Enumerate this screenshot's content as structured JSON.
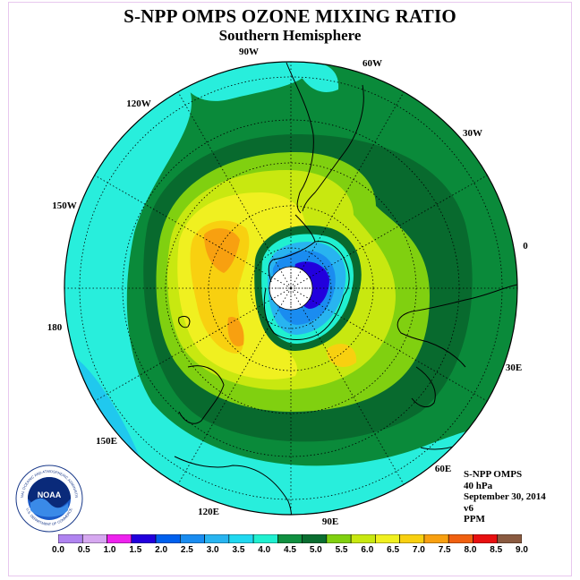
{
  "title": "S-NPP OMPS OZONE MIXING RATIO",
  "subtitle": "Southern Hemisphere",
  "longitude_labels": {
    "lon_90w": "90W",
    "lon_60w": "60W",
    "lon_30w": "30W",
    "lon_0": "0",
    "lon_30e": "30E",
    "lon_60e": "60E",
    "lon_90e": "90E",
    "lon_120e": "120E",
    "lon_150e": "150E",
    "lon_180": "180",
    "lon_150w": "150W",
    "lon_120w": "120W"
  },
  "info": {
    "instrument": "S-NPP OMPS",
    "level": "40 hPa",
    "date": "September 30, 2014",
    "version": "v6",
    "units": "PPM"
  },
  "logo": {
    "text": "NOAA",
    "ring_text": "NATIONAL OCEANIC AND ATMOSPHERIC ADMINISTRATION",
    "ring_text_bottom": "U.S. DEPARTMENT OF COMMERCE"
  },
  "colorbar": {
    "labels": [
      "0.0",
      "0.5",
      "1.0",
      "1.5",
      "2.0",
      "2.5",
      "3.0",
      "3.5",
      "4.0",
      "4.5",
      "5.0",
      "5.5",
      "6.0",
      "6.5",
      "7.0",
      "7.5",
      "8.0",
      "8.5",
      "9.0"
    ],
    "colors": [
      "#b084f0",
      "#d6a8f0",
      "#ee22ee",
      "#2200dd",
      "#0060ee",
      "#1a8cf0",
      "#28b4f0",
      "#20d8f0",
      "#20f0d0",
      "#109040",
      "#0a6e30",
      "#80d010",
      "#c8e810",
      "#f0f020",
      "#f8d010",
      "#f8a010",
      "#f06010",
      "#e81010",
      "#8a5a40"
    ]
  },
  "colors": {
    "background_ocean": "#0a8a3a",
    "outer_band": "#28eedc",
    "dark_ring": "#086a2e"
  }
}
